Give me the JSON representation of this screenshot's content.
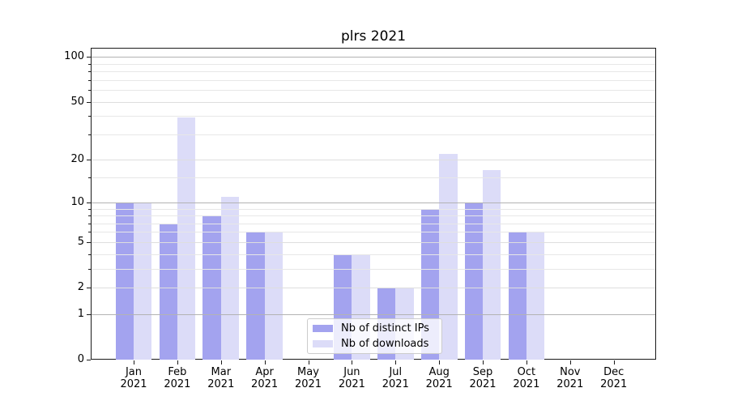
{
  "title": "plrs 2021",
  "chart_data": {
    "type": "bar",
    "title": "plrs 2021",
    "x": [
      {
        "month": "Jan",
        "year": "2021"
      },
      {
        "month": "Feb",
        "year": "2021"
      },
      {
        "month": "Mar",
        "year": "2021"
      },
      {
        "month": "Apr",
        "year": "2021"
      },
      {
        "month": "May",
        "year": "2021"
      },
      {
        "month": "Jun",
        "year": "2021"
      },
      {
        "month": "Jul",
        "year": "2021"
      },
      {
        "month": "Aug",
        "year": "2021"
      },
      {
        "month": "Sep",
        "year": "2021"
      },
      {
        "month": "Oct",
        "year": "2021"
      },
      {
        "month": "Nov",
        "year": "2021"
      },
      {
        "month": "Dec",
        "year": "2021"
      }
    ],
    "categories": [
      "Jan 2021",
      "Feb 2021",
      "Mar 2021",
      "Apr 2021",
      "May 2021",
      "Jun 2021",
      "Jul 2021",
      "Aug 2021",
      "Sep 2021",
      "Oct 2021",
      "Nov 2021",
      "Dec 2021"
    ],
    "series": [
      {
        "name": "Nb of distinct IPs",
        "color": "#a3a3ef",
        "values": [
          10,
          7,
          8,
          6,
          0,
          4,
          2,
          9,
          10,
          6,
          0,
          0
        ]
      },
      {
        "name": "Nb of downloads",
        "color": "#dcdcf8",
        "values": [
          10,
          39,
          11,
          6,
          0,
          4,
          2,
          22,
          17,
          6,
          0,
          0
        ]
      }
    ],
    "xlabel": "",
    "ylabel": "",
    "yscale": "log1p",
    "ylim": [
      0,
      115
    ],
    "y_major_ticks": [
      0,
      1,
      2,
      5,
      10,
      20,
      50,
      100
    ],
    "y_minor_ticks": [
      3,
      4,
      6,
      7,
      8,
      9,
      15,
      30,
      40,
      60,
      70,
      80,
      90
    ],
    "y_strong_gridlines": [
      1,
      10,
      100
    ],
    "grid": true,
    "legend_position": "lower center inside",
    "colors": {
      "strong_grid": "#b3b3b3",
      "light_grid": "#e7e7e7",
      "spine": "#1a1a1a",
      "background": "#ffffff"
    }
  }
}
